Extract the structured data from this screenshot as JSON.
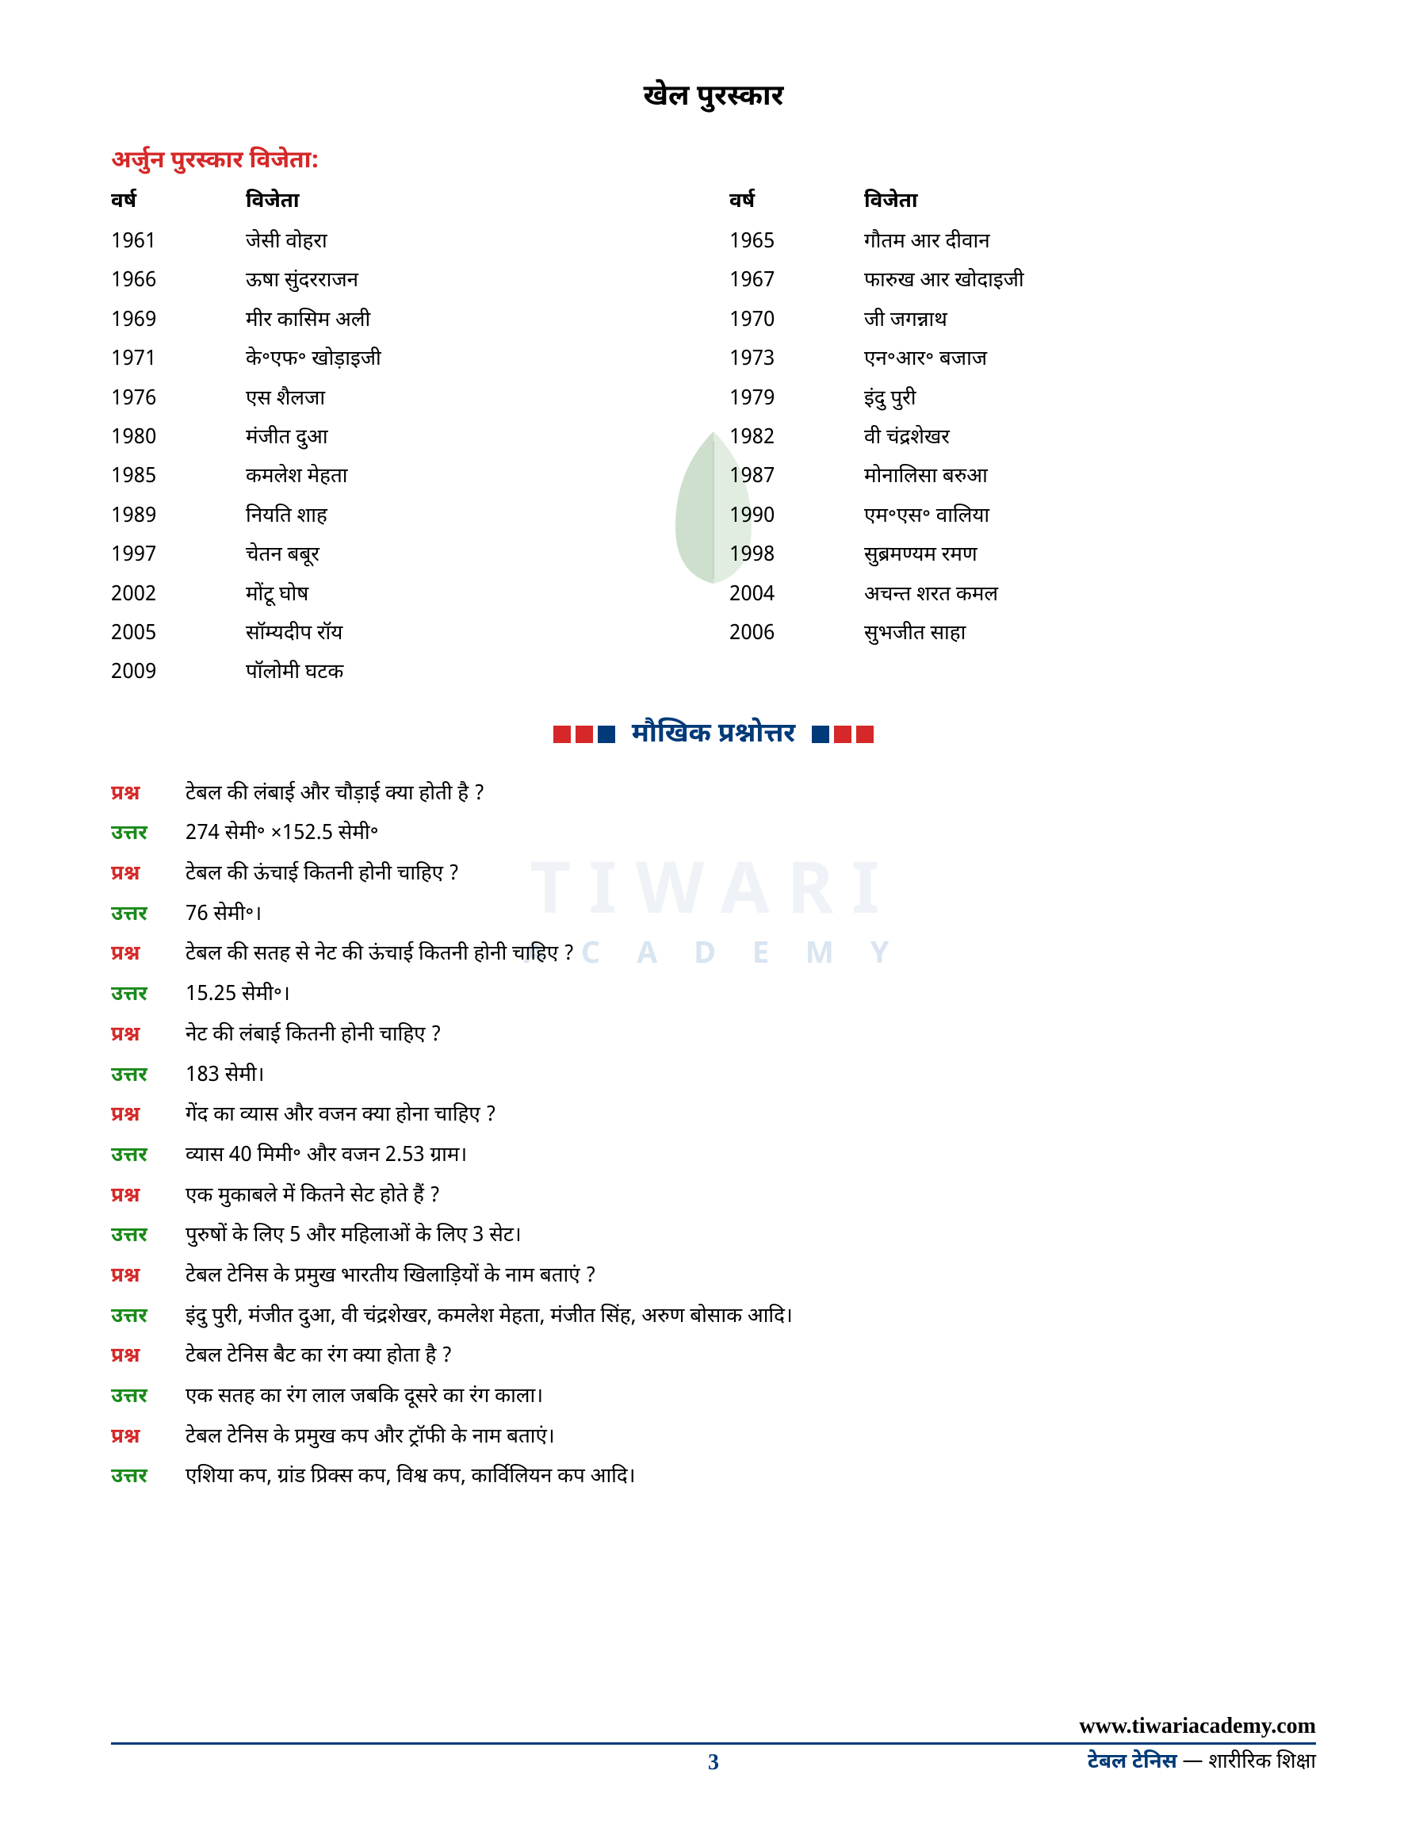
{
  "main_title": "खेल पुरस्कार",
  "sub_title": "अर्जुन पुरस्कार विजेता:",
  "headers": {
    "year": "वर्ष",
    "winner": "विजेता"
  },
  "awards_left": [
    {
      "year": "1961",
      "winner": "जेसी वोहरा"
    },
    {
      "year": "1966",
      "winner": "ऊषा सुंदरराजन"
    },
    {
      "year": "1969",
      "winner": "मीर कासिम अली"
    },
    {
      "year": "1971",
      "winner": "के॰एफ॰ खोड़ाइजी"
    },
    {
      "year": "1976",
      "winner": "एस शैलजा"
    },
    {
      "year": "1980",
      "winner": "मंजीत दुआ"
    },
    {
      "year": "1985",
      "winner": "कमलेश मेहता"
    },
    {
      "year": "1989",
      "winner": "नियति शाह"
    },
    {
      "year": "1997",
      "winner": "चेतन बबूर"
    },
    {
      "year": "2002",
      "winner": "मोंटू घोष"
    },
    {
      "year": "2005",
      "winner": "सॉम्यदीप रॉय"
    },
    {
      "year": "2009",
      "winner": "पॉलोमी घटक"
    }
  ],
  "awards_right": [
    {
      "year": "1965",
      "winner": "गौतम आर दीवान"
    },
    {
      "year": "1967",
      "winner": "फारुख आर खोदाइजी"
    },
    {
      "year": "1970",
      "winner": "जी जगन्नाथ"
    },
    {
      "year": "1973",
      "winner": "एन॰आर॰ बजाज"
    },
    {
      "year": "1979",
      "winner": "इंदु पुरी"
    },
    {
      "year": "1982",
      "winner": "वी चंद्रशेखर"
    },
    {
      "year": "1987",
      "winner": "मोनालिसा बरुआ"
    },
    {
      "year": "1990",
      "winner": "एम॰एस॰ वालिया"
    },
    {
      "year": "1998",
      "winner": "सुब्रमण्यम रमण"
    },
    {
      "year": "2004",
      "winner": "अचन्त शरत कमल"
    },
    {
      "year": "2006",
      "winner": "सुभजीत साहा"
    }
  ],
  "section_header": "मौखिक प्रश्नोत्तर",
  "labels": {
    "question": "प्रश्न",
    "answer": "उत्तर"
  },
  "qa": [
    {
      "q": "टेबल की लंबाई और चौड़ाई क्या होती है ?",
      "a": "274 सेमी॰ ×152.5 सेमी॰"
    },
    {
      "q": "टेबल की ऊंचाई कितनी होनी चाहिए ?",
      "a": "76 सेमी॰।"
    },
    {
      "q": "टेबल की सतह से नेट की ऊंचाई कितनी होनी चाहिए ?",
      "a": "15.25 सेमी॰।"
    },
    {
      "q": "नेट की लंबाई कितनी होनी चाहिए ?",
      "a": "183 सेमी।"
    },
    {
      "q": "गेंद का व्यास और वजन क्या होना चाहिए ?",
      "a": "व्यास 40 मिमी॰ और वजन 2.53 ग्राम।"
    },
    {
      "q": "एक मुकाबले में कितने सेट होते हैं ?",
      "a": "पुरुषों के लिए 5 और महिलाओं के लिए 3 सेट।"
    },
    {
      "q": "टेबल टेनिस के प्रमुख भारतीय खिलाड़ियों के नाम बताएं ?",
      "a": "इंदु पुरी, मंजीत दुआ, वी चंद्रशेखर, कमलेश मेहता, मंजीत सिंह, अरुण बोसाक आदि।"
    },
    {
      "q": "टेबल टेनिस बैट का रंग क्या होता है ?",
      "a": "एक सतह का रंग लाल जबकि दूसरे का रंग काला।"
    },
    {
      "q": "टेबल टेनिस के प्रमुख कप और ट्रॉफी के नाम बताएं।",
      "a": "एशिया कप, ग्रांड प्रिक्स कप, विश्व कप, कार्विलियन कप आदि।"
    }
  ],
  "footer": {
    "url": "www.tiwariacademy.com",
    "page": "3",
    "subject_bold": "टेबल टेनिस",
    "subject_rest": " — शारीरिक शिक्षा"
  },
  "watermark": {
    "main": "TIWARI",
    "sub": "A C A D E M Y"
  },
  "colors": {
    "red": "#d62828",
    "blue": "#003a78",
    "green": "#1a8a1a",
    "text": "#000000"
  }
}
